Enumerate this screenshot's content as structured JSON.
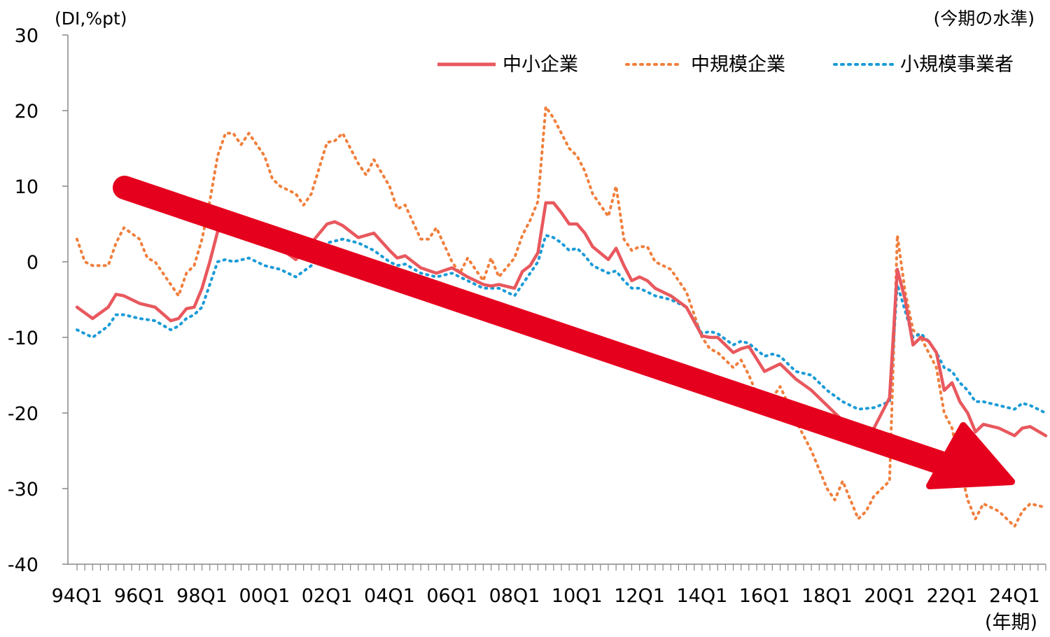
{
  "chart_data": {
    "type": "line",
    "y_unit_label": "(DI,%pt)",
    "top_right_label": "(今期の水準)",
    "x_unit_label": "(年期)",
    "ylim": [
      -40,
      30
    ],
    "y_ticks": [
      30,
      20,
      10,
      0,
      -10,
      -20,
      -30,
      -40
    ],
    "x_tick_labels": [
      "94Q1",
      "96Q1",
      "98Q1",
      "00Q1",
      "02Q1",
      "04Q1",
      "06Q1",
      "08Q1",
      "10Q1",
      "12Q1",
      "14Q1",
      "16Q1",
      "18Q1",
      "20Q1",
      "22Q1",
      "24Q1"
    ],
    "x_start": "1994Q1",
    "x_end": "2025Q1",
    "grid": false,
    "legend_position": "top-right",
    "trend_arrow": "downward",
    "series": [
      {
        "name": "中小企業",
        "style": "solid",
        "color": "#E8585E",
        "points": [
          [
            "94Q1",
            -6
          ],
          [
            "94Q3",
            -7.5
          ],
          [
            "95Q1",
            -6
          ],
          [
            "95Q2",
            -4.3
          ],
          [
            "95Q3",
            -4.5
          ],
          [
            "96Q1",
            -5.5
          ],
          [
            "96Q3",
            -6
          ],
          [
            "97Q1",
            -7.8
          ],
          [
            "97Q2",
            -7.5
          ],
          [
            "97Q3",
            -6.2
          ],
          [
            "97Q4",
            -6
          ],
          [
            "98Q1",
            -3.5
          ],
          [
            "98Q2",
            0
          ],
          [
            "98Q3",
            4
          ],
          [
            "98Q4",
            4.5
          ],
          [
            "99Q1",
            4
          ],
          [
            "99Q3",
            4
          ],
          [
            "00Q1",
            2.3
          ],
          [
            "00Q3",
            1.8
          ],
          [
            "01Q1",
            0.3
          ],
          [
            "01Q3",
            2.5
          ],
          [
            "02Q1",
            5
          ],
          [
            "02Q2",
            5.3
          ],
          [
            "02Q3",
            4.8
          ],
          [
            "03Q1",
            3.2
          ],
          [
            "03Q3",
            3.8
          ],
          [
            "04Q1",
            1.5
          ],
          [
            "04Q2",
            0.5
          ],
          [
            "04Q3",
            0.8
          ],
          [
            "05Q1",
            -0.8
          ],
          [
            "05Q3",
            -1.5
          ],
          [
            "06Q1",
            -0.8
          ],
          [
            "06Q3",
            -2
          ],
          [
            "07Q1",
            -3
          ],
          [
            "07Q2",
            -3.2
          ],
          [
            "07Q3",
            -3
          ],
          [
            "08Q1",
            -3.5
          ],
          [
            "08Q2",
            -1.3
          ],
          [
            "08Q3",
            -0.5
          ],
          [
            "08Q4",
            1.2
          ],
          [
            "09Q1",
            7.8
          ],
          [
            "09Q2",
            7.8
          ],
          [
            "09Q3",
            6.5
          ],
          [
            "09Q4",
            5
          ],
          [
            "10Q1",
            5
          ],
          [
            "10Q2",
            3.8
          ],
          [
            "10Q3",
            2
          ],
          [
            "11Q1",
            0.3
          ],
          [
            "11Q2",
            1.8
          ],
          [
            "11Q3",
            -0.5
          ],
          [
            "11Q4",
            -2.5
          ],
          [
            "12Q1",
            -2
          ],
          [
            "12Q2",
            -2.5
          ],
          [
            "12Q3",
            -3.5
          ],
          [
            "13Q1",
            -4.5
          ],
          [
            "13Q3",
            -6
          ],
          [
            "14Q1",
            -9.8
          ],
          [
            "14Q2",
            -10
          ],
          [
            "14Q3",
            -10
          ],
          [
            "15Q1",
            -12
          ],
          [
            "15Q2",
            -11.5
          ],
          [
            "15Q3",
            -11.2
          ],
          [
            "16Q1",
            -14.5
          ],
          [
            "16Q2",
            -14
          ],
          [
            "16Q3",
            -13.5
          ],
          [
            "17Q1",
            -15.5
          ],
          [
            "17Q3",
            -17
          ],
          [
            "18Q1",
            -19
          ],
          [
            "18Q3",
            -21
          ],
          [
            "19Q1",
            -23
          ],
          [
            "19Q3",
            -22
          ],
          [
            "20Q1",
            -18
          ],
          [
            "20Q2",
            -1
          ],
          [
            "20Q3",
            -5
          ],
          [
            "20Q4",
            -11
          ],
          [
            "21Q1",
            -10
          ],
          [
            "21Q2",
            -10.5
          ],
          [
            "21Q3",
            -12
          ],
          [
            "21Q4",
            -17
          ],
          [
            "22Q1",
            -16
          ],
          [
            "22Q2",
            -18.5
          ],
          [
            "22Q3",
            -20
          ],
          [
            "22Q4",
            -22.5
          ],
          [
            "23Q1",
            -21.5
          ],
          [
            "23Q3",
            -22
          ],
          [
            "24Q1",
            -23
          ],
          [
            "24Q2",
            -22
          ],
          [
            "24Q3",
            -21.8
          ],
          [
            "25Q1",
            -23
          ]
        ]
      },
      {
        "name": "中規模企業",
        "style": "dotted",
        "color": "#F07F3C",
        "points": [
          [
            "94Q1",
            3
          ],
          [
            "94Q2",
            0
          ],
          [
            "94Q3",
            -0.5
          ],
          [
            "95Q1",
            -0.5
          ],
          [
            "95Q2",
            2.5
          ],
          [
            "95Q3",
            4.5
          ],
          [
            "96Q1",
            3
          ],
          [
            "96Q2",
            0.5
          ],
          [
            "96Q3",
            0
          ],
          [
            "97Q1",
            -3
          ],
          [
            "97Q2",
            -4.5
          ],
          [
            "97Q3",
            -1.5
          ],
          [
            "97Q4",
            -0.5
          ],
          [
            "98Q1",
            3
          ],
          [
            "98Q2",
            8
          ],
          [
            "98Q3",
            14
          ],
          [
            "98Q4",
            17
          ],
          [
            "99Q1",
            17
          ],
          [
            "99Q2",
            15.5
          ],
          [
            "99Q3",
            17
          ],
          [
            "00Q1",
            14
          ],
          [
            "00Q2",
            11
          ],
          [
            "00Q3",
            10
          ],
          [
            "01Q1",
            9
          ],
          [
            "01Q2",
            7.5
          ],
          [
            "01Q3",
            9
          ],
          [
            "02Q1",
            15.8
          ],
          [
            "02Q2",
            16
          ],
          [
            "02Q3",
            17
          ],
          [
            "03Q1",
            13
          ],
          [
            "03Q2",
            11.5
          ],
          [
            "03Q3",
            13.5
          ],
          [
            "04Q1",
            10
          ],
          [
            "04Q2",
            7
          ],
          [
            "04Q3",
            7.5
          ],
          [
            "05Q1",
            3
          ],
          [
            "05Q2",
            3
          ],
          [
            "05Q3",
            4.5
          ],
          [
            "06Q1",
            0
          ],
          [
            "06Q2",
            -1.5
          ],
          [
            "06Q3",
            0.5
          ],
          [
            "07Q1",
            -2.5
          ],
          [
            "07Q2",
            0.5
          ],
          [
            "07Q3",
            -2
          ],
          [
            "08Q1",
            0.5
          ],
          [
            "08Q2",
            3.5
          ],
          [
            "08Q3",
            5.5
          ],
          [
            "08Q4",
            8
          ],
          [
            "09Q1",
            20.5
          ],
          [
            "09Q2",
            19
          ],
          [
            "09Q3",
            17
          ],
          [
            "09Q4",
            15
          ],
          [
            "10Q1",
            14
          ],
          [
            "10Q2",
            12
          ],
          [
            "10Q3",
            9
          ],
          [
            "11Q1",
            6
          ],
          [
            "11Q2",
            10
          ],
          [
            "11Q3",
            3
          ],
          [
            "11Q4",
            1.5
          ],
          [
            "12Q1",
            2
          ],
          [
            "12Q2",
            2
          ],
          [
            "12Q3",
            0
          ],
          [
            "13Q1",
            -1
          ],
          [
            "13Q3",
            -4
          ],
          [
            "14Q1",
            -10
          ],
          [
            "14Q2",
            -11.5
          ],
          [
            "14Q3",
            -12
          ],
          [
            "15Q1",
            -14
          ],
          [
            "15Q2",
            -13
          ],
          [
            "15Q3",
            -15
          ],
          [
            "16Q1",
            -20
          ],
          [
            "16Q2",
            -18
          ],
          [
            "16Q3",
            -16.5
          ],
          [
            "17Q1",
            -21
          ],
          [
            "17Q3",
            -25
          ],
          [
            "18Q1",
            -30
          ],
          [
            "18Q2",
            -31.5
          ],
          [
            "18Q3",
            -29
          ],
          [
            "19Q1",
            -34
          ],
          [
            "19Q2",
            -33
          ],
          [
            "19Q3",
            -31
          ],
          [
            "20Q1",
            -29
          ],
          [
            "20Q2",
            3.5
          ],
          [
            "20Q3",
            -4
          ],
          [
            "20Q4",
            -9
          ],
          [
            "21Q1",
            -10
          ],
          [
            "21Q2",
            -12
          ],
          [
            "21Q3",
            -14
          ],
          [
            "21Q4",
            -20
          ],
          [
            "22Q1",
            -22
          ],
          [
            "22Q2",
            -27
          ],
          [
            "22Q3",
            -31.5
          ],
          [
            "22Q4",
            -34
          ],
          [
            "23Q1",
            -32
          ],
          [
            "23Q3",
            -33
          ],
          [
            "24Q1",
            -35
          ],
          [
            "24Q2",
            -33
          ],
          [
            "24Q3",
            -32
          ],
          [
            "25Q1",
            -32.5
          ]
        ]
      },
      {
        "name": "小規模事業者",
        "style": "dotted",
        "color": "#1A9BD7",
        "points": [
          [
            "94Q1",
            -9
          ],
          [
            "94Q3",
            -10
          ],
          [
            "95Q1",
            -8.5
          ],
          [
            "95Q2",
            -7
          ],
          [
            "95Q3",
            -7
          ],
          [
            "96Q1",
            -7.5
          ],
          [
            "96Q3",
            -7.8
          ],
          [
            "97Q1",
            -9
          ],
          [
            "97Q2",
            -8.5
          ],
          [
            "97Q3",
            -7.5
          ],
          [
            "97Q4",
            -7
          ],
          [
            "98Q1",
            -6
          ],
          [
            "98Q2",
            -3
          ],
          [
            "98Q3",
            0
          ],
          [
            "98Q4",
            0.3
          ],
          [
            "99Q1",
            0
          ],
          [
            "99Q3",
            0.5
          ],
          [
            "00Q1",
            -0.5
          ],
          [
            "00Q3",
            -1
          ],
          [
            "01Q1",
            -2
          ],
          [
            "01Q3",
            -0.5
          ],
          [
            "02Q1",
            2.5
          ],
          [
            "02Q3",
            3
          ],
          [
            "03Q1",
            2.5
          ],
          [
            "03Q3",
            1.5
          ],
          [
            "04Q1",
            0
          ],
          [
            "04Q2",
            -0.5
          ],
          [
            "04Q3",
            -0.3
          ],
          [
            "05Q1",
            -1.5
          ],
          [
            "05Q3",
            -2
          ],
          [
            "06Q1",
            -1.5
          ],
          [
            "06Q3",
            -2.5
          ],
          [
            "07Q1",
            -3.5
          ],
          [
            "07Q3",
            -3.5
          ],
          [
            "08Q1",
            -4.5
          ],
          [
            "08Q2",
            -3
          ],
          [
            "08Q3",
            -1.5
          ],
          [
            "08Q4",
            0
          ],
          [
            "09Q1",
            3.5
          ],
          [
            "09Q2",
            3.2
          ],
          [
            "09Q3",
            2.5
          ],
          [
            "09Q4",
            1.5
          ],
          [
            "10Q1",
            1.8
          ],
          [
            "10Q2",
            0.8
          ],
          [
            "10Q3",
            -0.5
          ],
          [
            "11Q1",
            -1.5
          ],
          [
            "11Q2",
            -1.2
          ],
          [
            "11Q3",
            -2.5
          ],
          [
            "11Q4",
            -3.5
          ],
          [
            "12Q1",
            -3.5
          ],
          [
            "12Q2",
            -4
          ],
          [
            "12Q3",
            -4.5
          ],
          [
            "13Q1",
            -5
          ],
          [
            "13Q3",
            -6
          ],
          [
            "14Q1",
            -9.5
          ],
          [
            "14Q2",
            -9.2
          ],
          [
            "14Q3",
            -9.5
          ],
          [
            "15Q1",
            -11
          ],
          [
            "15Q2",
            -10.5
          ],
          [
            "15Q3",
            -10.8
          ],
          [
            "16Q1",
            -12.5
          ],
          [
            "16Q2",
            -12.2
          ],
          [
            "16Q3",
            -12.5
          ],
          [
            "17Q1",
            -14.5
          ],
          [
            "17Q3",
            -15
          ],
          [
            "18Q1",
            -17
          ],
          [
            "18Q3",
            -18.5
          ],
          [
            "19Q1",
            -19.5
          ],
          [
            "19Q3",
            -19.3
          ],
          [
            "20Q1",
            -18.5
          ],
          [
            "20Q2",
            -3
          ],
          [
            "20Q3",
            -6.5
          ],
          [
            "20Q4",
            -10
          ],
          [
            "21Q1",
            -9.5
          ],
          [
            "21Q2",
            -10.5
          ],
          [
            "21Q3",
            -12
          ],
          [
            "21Q4",
            -14
          ],
          [
            "22Q1",
            -14.5
          ],
          [
            "22Q2",
            -16
          ],
          [
            "22Q3",
            -17
          ],
          [
            "22Q4",
            -18.5
          ],
          [
            "23Q1",
            -18.5
          ],
          [
            "23Q3",
            -19
          ],
          [
            "24Q1",
            -19.5
          ],
          [
            "24Q2",
            -18.7
          ],
          [
            "24Q3",
            -19
          ],
          [
            "25Q1",
            -20
          ]
        ]
      }
    ]
  },
  "legend": {
    "item1": "中小企業",
    "item2": "中規模企業",
    "item3": "小規模事業者"
  },
  "colors": {
    "small_medium": "#E8585E",
    "medium": "#F07F3C",
    "small": "#1A9BD7",
    "arrow": "#E5001E"
  }
}
